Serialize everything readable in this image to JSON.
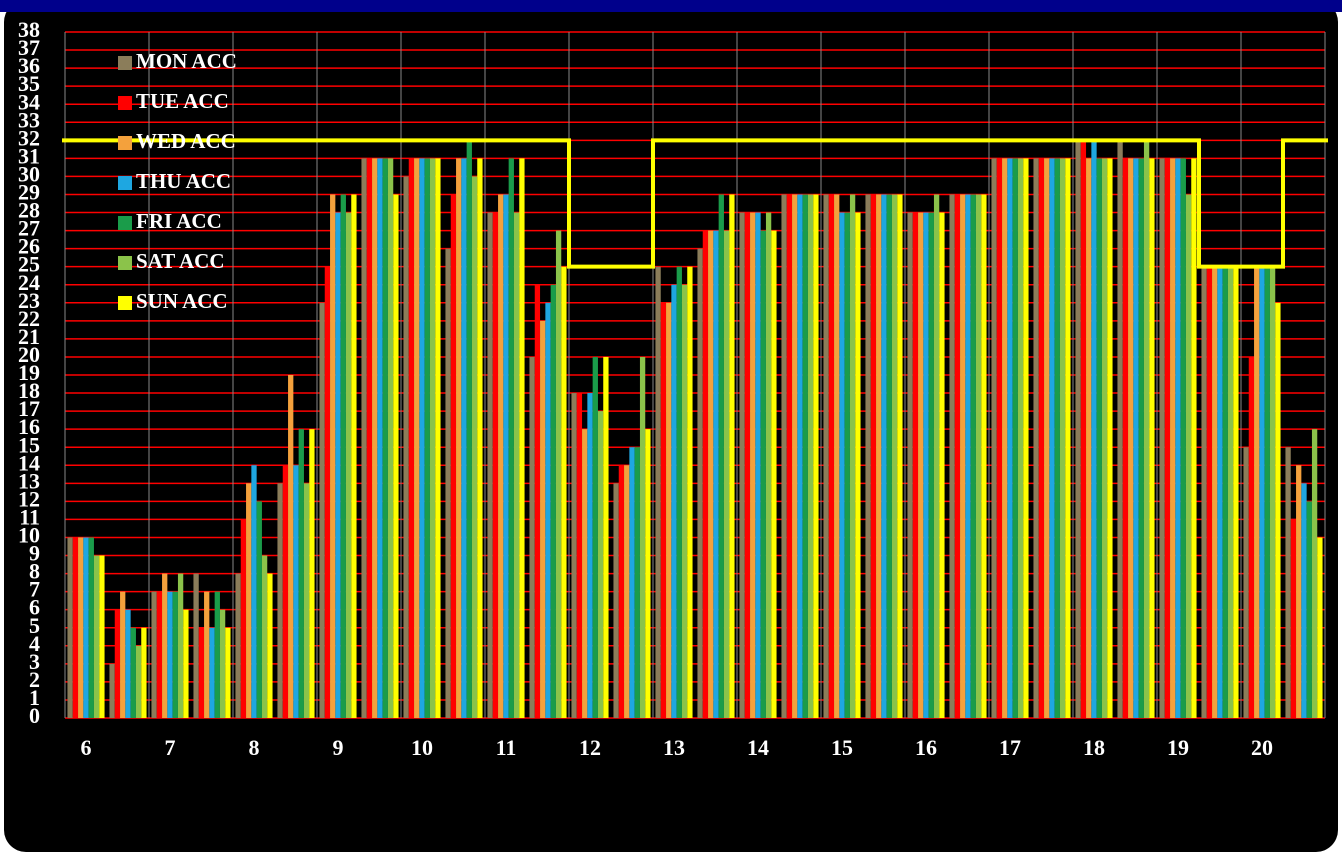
{
  "chart_data": {
    "type": "bar",
    "categories": [
      "6",
      null,
      "7",
      null,
      "8",
      null,
      "9",
      null,
      "10",
      null,
      "11",
      null,
      "12",
      null,
      "13",
      null,
      "14",
      null,
      "15",
      null,
      "16",
      null,
      "17",
      null,
      "18",
      null,
      "19",
      null,
      "20",
      null
    ],
    "series": [
      {
        "name": "MON ACC",
        "color": "#8b7d5a",
        "values": [
          10,
          3,
          7,
          8,
          8,
          13,
          23,
          31,
          30,
          26,
          28,
          20,
          18,
          13,
          25,
          26,
          28,
          29,
          29,
          29,
          28,
          29,
          31,
          31,
          32,
          32,
          31,
          25,
          15,
          15
        ]
      },
      {
        "name": "TUE ACC",
        "color": "#ff0000",
        "values": [
          10,
          6,
          7,
          5,
          11,
          14,
          25,
          31,
          31,
          29,
          28,
          24,
          18,
          14,
          23,
          27,
          28,
          29,
          29,
          29,
          28,
          29,
          31,
          31,
          32,
          31,
          31,
          25,
          20,
          11
        ]
      },
      {
        "name": "WED ACC",
        "color": "#f4a13c",
        "values": [
          10,
          7,
          8,
          7,
          13,
          19,
          29,
          31,
          31,
          31,
          29,
          22,
          16,
          14,
          23,
          27,
          28,
          29,
          29,
          29,
          28,
          29,
          31,
          31,
          31,
          31,
          31,
          25,
          25,
          14
        ]
      },
      {
        "name": "THU ACC",
        "color": "#1ea7e1",
        "values": [
          10,
          6,
          7,
          5,
          14,
          14,
          28,
          31,
          31,
          31,
          29,
          23,
          18,
          15,
          24,
          27,
          28,
          29,
          28,
          29,
          28,
          29,
          31,
          31,
          32,
          31,
          31,
          25,
          25,
          13
        ]
      },
      {
        "name": "FRI ACC",
        "color": "#1a9c4a",
        "values": [
          10,
          5,
          7,
          7,
          12,
          16,
          29,
          31,
          31,
          32,
          31,
          24,
          20,
          15,
          25,
          29,
          27,
          29,
          28,
          29,
          28,
          29,
          31,
          31,
          31,
          31,
          31,
          25,
          25,
          12
        ]
      },
      {
        "name": "SAT ACC",
        "color": "#8bc34a",
        "values": [
          9,
          4,
          8,
          6,
          9,
          13,
          28,
          31,
          31,
          30,
          28,
          27,
          17,
          20,
          24,
          27,
          28,
          29,
          29,
          29,
          29,
          29,
          31,
          31,
          31,
          32,
          29,
          25,
          25,
          16
        ]
      },
      {
        "name": "SUN ACC",
        "color": "#ffff00",
        "values": [
          9,
          5,
          6,
          5,
          8,
          16,
          29,
          29,
          31,
          31,
          31,
          25,
          20,
          16,
          25,
          29,
          27,
          29,
          28,
          29,
          28,
          29,
          31,
          31,
          31,
          31,
          31,
          25,
          23,
          10
        ]
      }
    ],
    "limit": {
      "color": "#ffff00",
      "values": [
        32,
        32,
        32,
        32,
        32,
        32,
        32,
        32,
        32,
        32,
        32,
        32,
        25,
        25,
        32,
        32,
        32,
        32,
        32,
        32,
        32,
        32,
        32,
        32,
        32,
        32,
        32,
        25,
        25,
        32
      ]
    },
    "ylim": [
      0,
      38
    ],
    "yticks": [
      0,
      1,
      2,
      3,
      4,
      5,
      6,
      7,
      8,
      9,
      10,
      11,
      12,
      13,
      14,
      15,
      16,
      17,
      18,
      19,
      20,
      21,
      22,
      23,
      24,
      25,
      26,
      27,
      28,
      29,
      30,
      31,
      32,
      33,
      34,
      35,
      36,
      37,
      38
    ],
    "grid": true,
    "grid_color": "#ff0000",
    "legend": "top-left"
  }
}
